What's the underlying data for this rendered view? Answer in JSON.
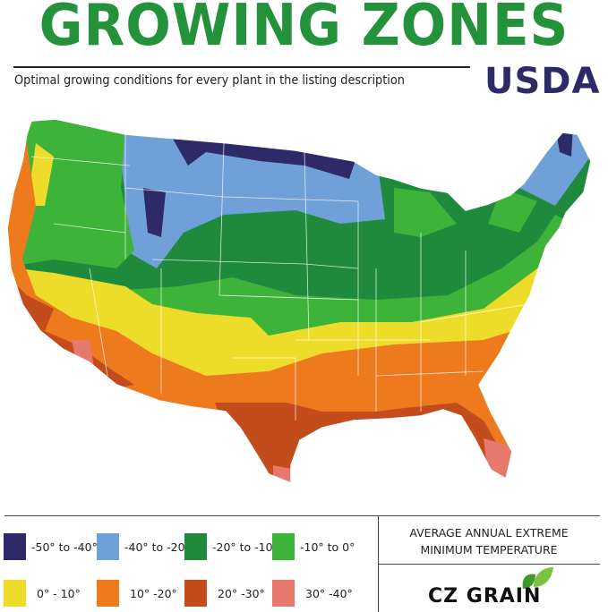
{
  "header": {
    "title": "GROWING ZONES",
    "subtitle": "Optimal growing conditions for every plant in the listing description",
    "badge": "USDA",
    "title_color": "#24923b",
    "badge_color": "#2e2a68"
  },
  "map": {
    "region": "Contiguous United States",
    "type": "choropleth",
    "zone_colors": {
      "z1": "#2e2a68",
      "z2": "#6fa0d8",
      "z3": "#1f8a3c",
      "z4": "#3db33a",
      "z5": "#eedc2a",
      "z6": "#ee7a1e",
      "z7": "#c24c1c",
      "z8": "#e6786d"
    }
  },
  "legend": {
    "caption_line1": "AVERAGE ANNUAL EXTREME",
    "caption_line2": "MINIMUM TEMPERATURE",
    "items": [
      {
        "label": "-50° to -40°",
        "color": "#2e2a68"
      },
      {
        "label": "-40° to -20°",
        "color": "#6fa0d8"
      },
      {
        "label": "-20° to -10°",
        "color": "#1f8a3c"
      },
      {
        "label": "-10° to 0°",
        "color": "#3db33a"
      },
      {
        "label": "0° - 10°",
        "color": "#eedc2a"
      },
      {
        "label": "10° -20°",
        "color": "#ee7a1e"
      },
      {
        "label": "20° -30°",
        "color": "#c24c1c"
      },
      {
        "label": "30° -40°",
        "color": "#e6786d"
      }
    ]
  },
  "logo": {
    "text": "CZ GRAIN"
  }
}
